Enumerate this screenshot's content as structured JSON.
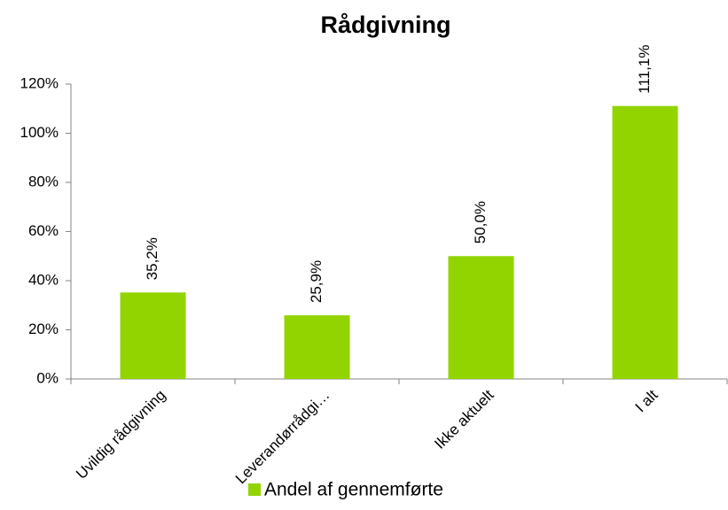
{
  "chart_data": {
    "type": "bar",
    "title": "Rådgivning",
    "categories": [
      "Uvildig rådgivning",
      "Leverandørrådgi…",
      "Ikke aktuelt",
      "I alt"
    ],
    "series": [
      {
        "name": "Andel af gennemførte",
        "color": "#92d400",
        "values": [
          35.2,
          25.9,
          50.0,
          111.1
        ],
        "value_labels": [
          "35,2%",
          "25,9%",
          "50,0%",
          "111,1%"
        ]
      }
    ],
    "ylim": [
      0,
      120
    ],
    "yticks": [
      {
        "value": 0,
        "label": "0%"
      },
      {
        "value": 20,
        "label": "20%"
      },
      {
        "value": 40,
        "label": "40%"
      },
      {
        "value": 60,
        "label": "60%"
      },
      {
        "value": 80,
        "label": "80%"
      },
      {
        "value": 100,
        "label": "100%"
      },
      {
        "value": 120,
        "label": "120%"
      }
    ],
    "grid": false,
    "legend": "bottom"
  }
}
